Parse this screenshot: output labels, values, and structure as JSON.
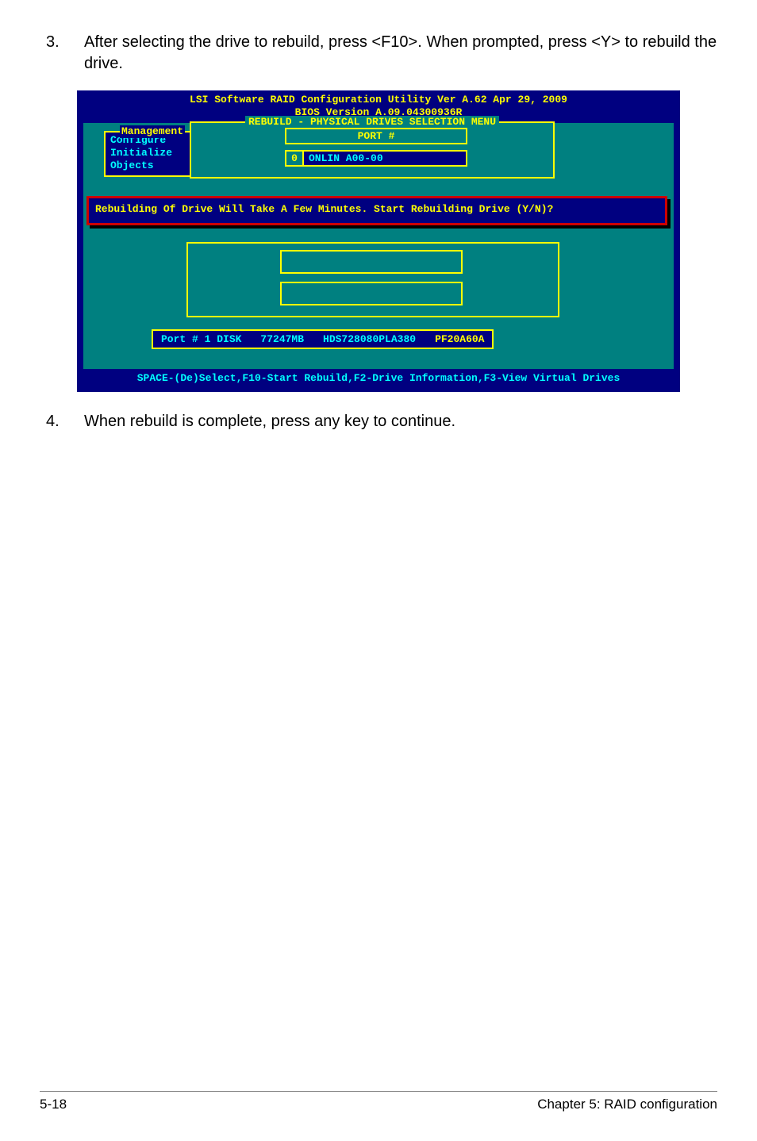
{
  "instructions": {
    "n3": "3.",
    "t3": "After selecting the drive to rebuild, press <F10>. When prompted, press <Y> to rebuild the drive.",
    "n4": "4.",
    "t4": "When rebuild is complete, press any key to continue."
  },
  "bios": {
    "title_line1": "LSI Software RAID Configuration Utility Ver A.62 Apr 29, 2009",
    "title_line2": "BIOS Version   A.09.04300936R",
    "rebuild_label": "REBUILD - PHYSICAL DRIVES SELECTION MENU",
    "port_heading": "PORT #",
    "port_index": "0",
    "port_value": "ONLIN A00-00",
    "mgmt_label": "Management",
    "mgmt_items": {
      "a": "Configure",
      "b": "Initialize",
      "c": "Objects"
    },
    "banner": "Rebuilding Of Drive Will Take A Few Minutes. Start Rebuilding Drive (Y/N)?",
    "portinfo": {
      "a": "Port # 1 DISK",
      "b": "77247MB",
      "c": "HDS728080PLA380",
      "d": "PF20A60A"
    },
    "footer": "SPACE-(De)Select,F10-Start Rebuild,F2-Drive Information,F3-View Virtual Drives",
    "colors": {
      "bg_blue": "#000080",
      "teal": "#008080",
      "yellow": "#ffff00",
      "cyan": "#00ffff",
      "red": "#cc0000"
    }
  },
  "footer": {
    "left": "5-18",
    "right": "Chapter 5: RAID configuration"
  }
}
